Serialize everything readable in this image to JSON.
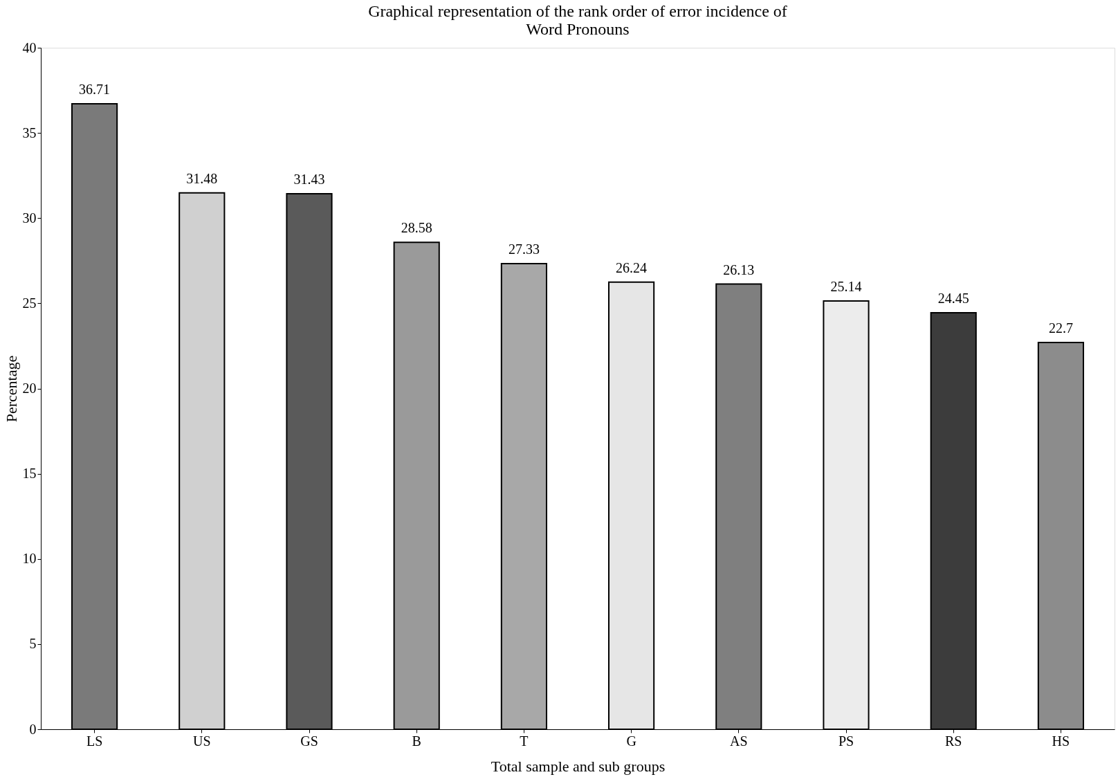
{
  "chart_data": {
    "type": "bar",
    "title": [
      "Graphical representation of the rank order of error incidence of",
      "Word Pronouns"
    ],
    "xlabel": "Total sample and sub groups",
    "ylabel": "Percentage",
    "categories": [
      "LS",
      "US",
      "GS",
      "B",
      "T",
      "G",
      "AS",
      "PS",
      "RS",
      "HS"
    ],
    "values": [
      36.71,
      31.48,
      31.43,
      28.58,
      27.33,
      26.24,
      26.13,
      25.14,
      24.45,
      22.7
    ],
    "colors": [
      "#7a7a7a",
      "#d0d0d0",
      "#5a5a5a",
      "#9a9a9a",
      "#a8a8a8",
      "#e6e6e6",
      "#7f7f7f",
      "#ececec",
      "#3c3c3c",
      "#8c8c8c"
    ],
    "data_labels": true,
    "ylim": [
      0,
      40
    ],
    "yticks": [
      0,
      5,
      10,
      15,
      20,
      25,
      30,
      35,
      40
    ],
    "grid": false
  }
}
